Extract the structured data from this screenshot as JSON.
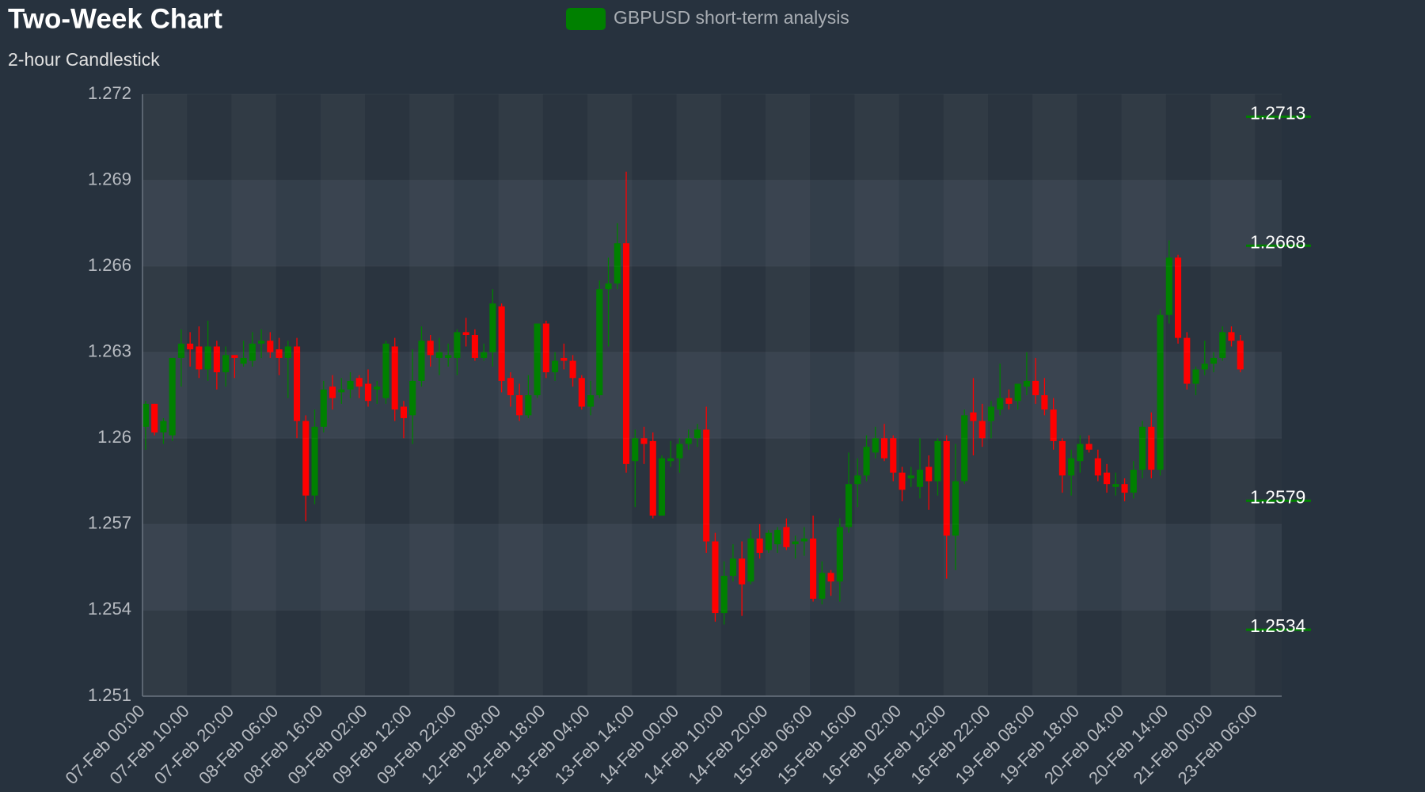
{
  "chart_data": {
    "type": "candlestick",
    "title": "Two-Week Chart",
    "subtitle": "2-hour Candlestick",
    "categories": [
      "07-Feb 00:00",
      null,
      null,
      null,
      null,
      "07-Feb 10:00",
      null,
      null,
      null,
      null,
      "07-Feb 20:00",
      null,
      null,
      null,
      null,
      "08-Feb 06:00",
      null,
      null,
      null,
      null,
      "08-Feb 16:00",
      null,
      null,
      null,
      null,
      "09-Feb 02:00",
      null,
      null,
      null,
      null,
      "09-Feb 12:00",
      null,
      null,
      null,
      null,
      "09-Feb 22:00",
      null,
      null,
      null,
      null,
      "12-Feb 08:00",
      null,
      null,
      null,
      null,
      "12-Feb 18:00",
      null,
      null,
      null,
      null,
      "13-Feb 04:00",
      null,
      null,
      null,
      null,
      "13-Feb 14:00",
      null,
      null,
      null,
      null,
      "14-Feb 00:00",
      null,
      null,
      null,
      null,
      "14-Feb 10:00",
      null,
      null,
      null,
      null,
      "14-Feb 20:00",
      null,
      null,
      null,
      null,
      "15-Feb 06:00",
      null,
      null,
      null,
      null,
      "15-Feb 16:00",
      null,
      null,
      null,
      null,
      "16-Feb 02:00",
      null,
      null,
      null,
      null,
      "16-Feb 12:00",
      null,
      null,
      null,
      null,
      "16-Feb 22:00",
      null,
      null,
      null,
      null,
      "19-Feb 08:00",
      null,
      null,
      null,
      null,
      "19-Feb 18:00",
      null,
      null,
      null,
      null,
      "20-Feb 04:00",
      null,
      null,
      null,
      null,
      "20-Feb 14:00",
      null,
      null,
      null,
      null,
      "21-Feb 00:00",
      null,
      null,
      null,
      null,
      "23-Feb 06:00",
      null,
      null
    ],
    "series": [
      {
        "name": "GBPUSD short-term analysis",
        "color": "#008000",
        "open": [
          1.2604,
          1.2612,
          1.2602,
          1.2601,
          1.2628,
          1.2633,
          1.2632,
          1.2624,
          1.2632,
          1.2623,
          1.2629,
          1.2626,
          1.2627,
          1.2633,
          1.2634,
          1.2631,
          1.2628,
          1.2632,
          1.2606,
          1.258,
          1.2604,
          1.2618,
          1.2616,
          1.2617,
          1.2621,
          1.2619,
          1.2617,
          1.2614,
          1.2632,
          1.2611,
          1.2608,
          1.262,
          1.2634,
          1.2628,
          1.2628,
          1.2628,
          1.2637,
          1.2636,
          1.2628,
          1.263,
          1.2646,
          1.2621,
          1.2615,
          1.2608,
          1.2615,
          1.264,
          1.2623,
          1.2628,
          1.2627,
          1.2621,
          1.2611,
          1.2615,
          1.2652,
          1.2654,
          1.2668,
          1.2592,
          1.26,
          1.2599,
          1.2573,
          1.2592,
          1.2593,
          1.2598,
          1.26,
          1.2603,
          1.2564,
          1.2539,
          1.2552,
          1.2558,
          1.255,
          1.2565,
          1.2561,
          1.2563,
          1.2569,
          1.2563,
          1.2564,
          1.2565,
          1.2544,
          1.2553,
          1.255,
          1.2569,
          1.2584,
          1.2587,
          1.2595,
          1.26,
          1.26,
          1.2588,
          1.2586,
          1.2583,
          1.259,
          1.2585,
          1.2599,
          1.2566,
          1.2585,
          1.2609,
          1.2606,
          1.2606,
          1.261,
          1.2614,
          1.2613,
          1.2618,
          1.262,
          1.2615,
          1.261,
          1.2599,
          1.2587,
          1.2592,
          1.2598,
          1.2593,
          1.2588,
          1.2583,
          1.2584,
          1.2581,
          1.2589,
          1.2604,
          1.2589,
          1.2643,
          1.2663,
          1.2635,
          1.2619,
          1.2624,
          1.2626,
          1.2628,
          1.2637,
          1.2634,
          null,
          null,
          null,
          null
        ],
        "high": [
          1.2613,
          1.2612,
          1.2607,
          1.2628,
          1.2638,
          1.2637,
          1.2639,
          1.2641,
          1.2634,
          1.2632,
          1.2629,
          1.2634,
          1.2637,
          1.2638,
          1.2637,
          1.2635,
          1.2634,
          1.2635,
          1.2608,
          1.261,
          1.262,
          1.2622,
          1.2621,
          1.2623,
          1.2622,
          1.2624,
          1.262,
          1.2634,
          1.2635,
          1.2613,
          1.2631,
          1.2639,
          1.2636,
          1.2635,
          1.2633,
          1.2638,
          1.2642,
          1.2638,
          1.2633,
          1.2652,
          1.2647,
          1.2623,
          1.2619,
          1.2622,
          1.264,
          1.2641,
          1.263,
          1.2633,
          1.2629,
          1.2622,
          1.262,
          1.2655,
          1.2663,
          1.2675,
          1.2693,
          1.2603,
          1.2604,
          1.2602,
          1.2594,
          1.2599,
          1.26,
          1.2603,
          1.2605,
          1.2611,
          1.2567,
          1.2557,
          1.2563,
          1.2564,
          1.2568,
          1.257,
          1.2568,
          1.2569,
          1.2572,
          1.2566,
          1.2569,
          1.2573,
          1.2557,
          1.2554,
          1.2572,
          1.2595,
          1.2593,
          1.2601,
          1.2604,
          1.2605,
          1.2601,
          1.259,
          1.259,
          1.26,
          1.2594,
          1.26,
          1.2601,
          1.2598,
          1.261,
          1.2621,
          1.2612,
          1.2613,
          1.2626,
          1.2617,
          1.2619,
          1.263,
          1.2628,
          1.2621,
          1.2614,
          1.26,
          1.2596,
          1.2601,
          1.2601,
          1.2596,
          1.2591,
          1.2588,
          1.2586,
          1.2592,
          1.2606,
          1.2609,
          1.2645,
          1.2669,
          1.2664,
          1.2637,
          1.2625,
          1.2634,
          1.263,
          1.2639,
          1.2639,
          1.2636,
          null,
          null,
          null,
          null
        ],
        "low": [
          1.2596,
          1.2601,
          1.2598,
          1.2599,
          1.2618,
          1.2625,
          1.2621,
          1.262,
          1.2617,
          1.2618,
          1.2621,
          1.2625,
          1.2625,
          1.2628,
          1.2628,
          1.2622,
          1.2614,
          1.26,
          1.2571,
          1.2577,
          1.2602,
          1.261,
          1.2612,
          1.2614,
          1.2614,
          1.2611,
          1.2612,
          1.2612,
          1.2606,
          1.26,
          1.2598,
          1.2618,
          1.2625,
          1.2622,
          1.2625,
          1.2622,
          1.2632,
          1.2627,
          1.2627,
          1.2625,
          1.2616,
          1.2611,
          1.2606,
          1.2607,
          1.2614,
          1.2621,
          1.262,
          1.2624,
          1.2618,
          1.261,
          1.2608,
          1.2614,
          1.2632,
          1.2652,
          1.2588,
          1.2576,
          1.2591,
          1.2572,
          1.2573,
          1.259,
          1.2588,
          1.2596,
          1.2597,
          1.256,
          1.2536,
          1.2535,
          1.255,
          1.2538,
          1.2549,
          1.2558,
          1.256,
          1.256,
          1.2561,
          1.2558,
          1.2559,
          1.2543,
          1.2542,
          1.2545,
          1.2543,
          1.2567,
          1.2576,
          1.2585,
          1.2593,
          1.2592,
          1.2585,
          1.2578,
          1.2583,
          1.2579,
          1.2575,
          1.258,
          1.2551,
          1.2554,
          1.2584,
          1.2594,
          1.2597,
          1.26,
          1.2608,
          1.261,
          1.261,
          1.2615,
          1.2612,
          1.2608,
          1.2596,
          1.2581,
          1.258,
          1.2588,
          1.2595,
          1.2585,
          1.2581,
          1.258,
          1.2578,
          1.2579,
          1.2586,
          1.2586,
          1.2587,
          1.264,
          1.2633,
          1.2617,
          1.2615,
          1.2622,
          1.2623,
          1.2627,
          1.2632,
          1.2623,
          null,
          null,
          null,
          null
        ],
        "close": [
          1.2612,
          1.2602,
          1.2606,
          1.2628,
          1.2633,
          1.2631,
          1.2624,
          1.2632,
          1.2623,
          1.2629,
          1.2628,
          1.2628,
          1.2633,
          1.2634,
          1.263,
          1.2628,
          1.2632,
          1.2606,
          1.258,
          1.2604,
          1.2617,
          1.2614,
          1.2617,
          1.262,
          1.2618,
          1.2613,
          1.2618,
          1.2633,
          1.261,
          1.2607,
          1.262,
          1.2634,
          1.2629,
          1.263,
          1.2629,
          1.2637,
          1.2636,
          1.2628,
          1.263,
          1.2647,
          1.262,
          1.2615,
          1.2608,
          1.2615,
          1.264,
          1.2623,
          1.2627,
          1.2627,
          1.2621,
          1.2611,
          1.2615,
          1.2652,
          1.2654,
          1.2668,
          1.2591,
          1.26,
          1.2598,
          1.2573,
          1.2593,
          1.2593,
          1.2598,
          1.26,
          1.2603,
          1.2564,
          1.2539,
          1.2552,
          1.2558,
          1.2549,
          1.2565,
          1.256,
          1.2567,
          1.2568,
          1.2562,
          1.2564,
          1.2565,
          1.2544,
          1.2553,
          1.255,
          1.2569,
          1.2584,
          1.2587,
          1.2597,
          1.26,
          1.2593,
          1.2588,
          1.2582,
          1.2587,
          1.2589,
          1.2585,
          1.2599,
          1.2566,
          1.2585,
          1.2608,
          1.2606,
          1.26,
          1.2611,
          1.2614,
          1.2612,
          1.2619,
          1.262,
          1.2615,
          1.261,
          1.2599,
          1.2587,
          1.2593,
          1.2598,
          1.2596,
          1.2587,
          1.2584,
          1.2584,
          1.2581,
          1.2589,
          1.2604,
          1.2589,
          1.2643,
          1.2663,
          1.2635,
          1.2619,
          1.2624,
          1.2626,
          1.2628,
          1.2637,
          1.2634,
          1.2624,
          null,
          null,
          null,
          null
        ]
      }
    ],
    "up_color": "#008000",
    "down_color": "#ff0000",
    "ylim": [
      1.251,
      1.272
    ],
    "yticks": [
      1.251,
      1.254,
      1.257,
      1.26,
      1.263,
      1.266,
      1.269,
      1.272
    ],
    "levels": [
      1.2713,
      1.2668,
      1.2579,
      1.2534
    ],
    "level_color": "#008000",
    "grid": true
  }
}
